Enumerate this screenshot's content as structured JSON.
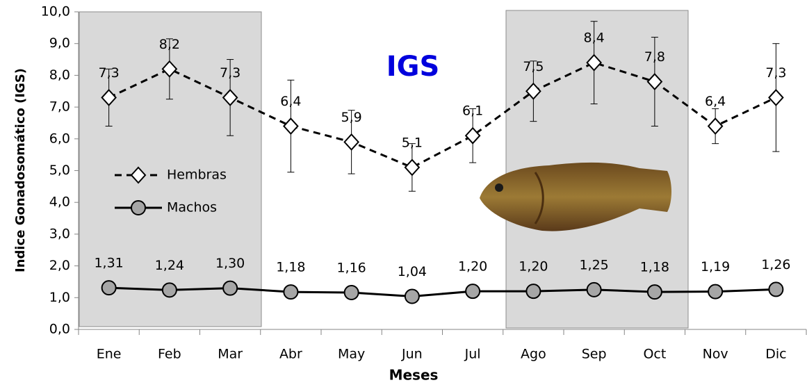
{
  "chart_data": {
    "type": "line",
    "annotation": "IGS",
    "x_label": "Meses",
    "y_label": "Indice Gonadosomático (IGS)",
    "categories": [
      "Ene",
      "Feb",
      "Mar",
      "Abr",
      "May",
      "Jun",
      "Jul",
      "Ago",
      "Sep",
      "Oct",
      "Nov",
      "Dic"
    ],
    "series": [
      {
        "name": "Hembras",
        "color": "#000000",
        "marker": "diamond",
        "marker_fill": "#ffffff",
        "dashed": true,
        "values": [
          7.3,
          8.2,
          7.3,
          6.4,
          5.9,
          5.1,
          6.1,
          7.5,
          8.4,
          7.8,
          6.4,
          7.3
        ],
        "value_labels": [
          "7,3",
          "8,2",
          "7,3",
          "6,4",
          "5,9",
          "5,1",
          "6,1",
          "7,5",
          "8,4",
          "7,8",
          "6,4",
          "7,3"
        ],
        "errors": [
          0.9,
          0.95,
          1.2,
          1.45,
          1.0,
          0.75,
          0.85,
          0.95,
          1.3,
          1.4,
          0.55,
          1.7
        ]
      },
      {
        "name": "Machos",
        "color": "#000000",
        "marker": "circle",
        "marker_fill": "#a6a6a6",
        "dashed": false,
        "values": [
          1.31,
          1.24,
          1.3,
          1.18,
          1.16,
          1.04,
          1.2,
          1.2,
          1.25,
          1.18,
          1.19,
          1.26
        ],
        "value_labels": [
          "1,31",
          "1,24",
          "1,30",
          "1,18",
          "1,16",
          "1,04",
          "1,20",
          "1,20",
          "1,25",
          "1,18",
          "1,19",
          "1,26"
        ],
        "errors": [
          0.15,
          0.05,
          0.05,
          0.05,
          0.05,
          0.05,
          0.05,
          0.05,
          0.05,
          0.05,
          0.15,
          0.05
        ]
      }
    ],
    "ylim": [
      0,
      10
    ],
    "yticks": [
      {
        "value": 0,
        "label": "0,0"
      },
      {
        "value": 1,
        "label": "1,0"
      },
      {
        "value": 2,
        "label": "2,0"
      },
      {
        "value": 3,
        "label": "3,0"
      },
      {
        "value": 4,
        "label": "4,0"
      },
      {
        "value": 5,
        "label": "5,0"
      },
      {
        "value": 6,
        "label": "6,0"
      },
      {
        "value": 7,
        "label": "7,0"
      },
      {
        "value": 8,
        "label": "8,0"
      },
      {
        "value": 9,
        "label": "9,0"
      },
      {
        "value": 10,
        "label": "10,0"
      }
    ],
    "legend": "left"
  }
}
